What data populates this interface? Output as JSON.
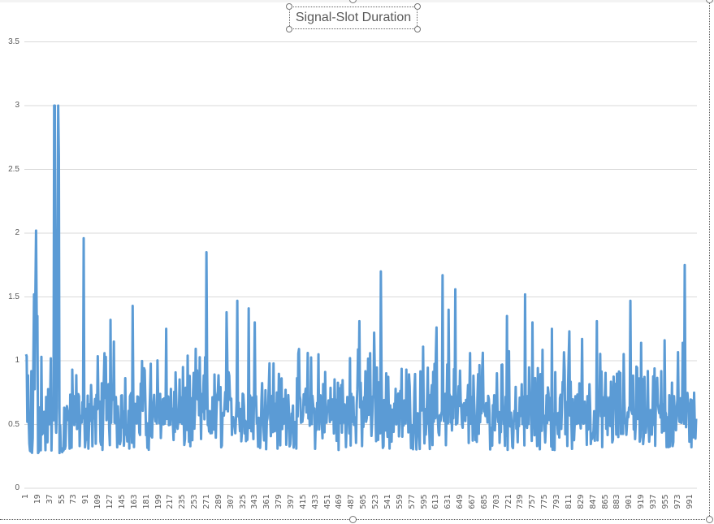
{
  "chart_data": {
    "type": "line",
    "title": "Signal-Slot Duration",
    "xlabel": "",
    "ylabel": "",
    "ylim": [
      0,
      3.5
    ],
    "y_ticks": [
      "0",
      "0.5",
      "1",
      "1.5",
      "2",
      "2.5",
      "3",
      "3.5"
    ],
    "x_tick_labels": [
      "1",
      "19",
      "37",
      "55",
      "73",
      "91",
      "109",
      "127",
      "145",
      "163",
      "181",
      "199",
      "217",
      "235",
      "253",
      "271",
      "289",
      "307",
      "325",
      "343",
      "361",
      "379",
      "397",
      "415",
      "433",
      "451",
      "469",
      "487",
      "505",
      "523",
      "541",
      "559",
      "577",
      "595",
      "613",
      "631",
      "649",
      "667",
      "685",
      "703",
      "721",
      "739",
      "757",
      "775",
      "793",
      "811",
      "829",
      "847",
      "865",
      "883",
      "901",
      "919",
      "937",
      "955",
      "973",
      "991"
    ],
    "grid": "horizontal major gridlines",
    "legend": "none",
    "series": [
      {
        "name": "Signal-Slot Duration",
        "color": "#5B9BD5",
        "n_points": 1000,
        "baseline_range": [
          0.3,
          0.9
        ],
        "typical_value": 0.55,
        "notable_peaks": [
          {
            "x": 1,
            "y": 1.05
          },
          {
            "x": 13,
            "y": 1.52
          },
          {
            "x": 16,
            "y": 2.02
          },
          {
            "x": 18,
            "y": 1.35
          },
          {
            "x": 24,
            "y": 1.03
          },
          {
            "x": 43,
            "y": 3.0
          },
          {
            "x": 48,
            "y": 1.98
          },
          {
            "x": 49,
            "y": 3.0
          },
          {
            "x": 70,
            "y": 0.93
          },
          {
            "x": 87,
            "y": 1.96
          },
          {
            "x": 127,
            "y": 1.32
          },
          {
            "x": 132,
            "y": 1.15
          },
          {
            "x": 160,
            "y": 1.43
          },
          {
            "x": 210,
            "y": 1.25
          },
          {
            "x": 242,
            "y": 1.04
          },
          {
            "x": 270,
            "y": 1.85
          },
          {
            "x": 300,
            "y": 1.38
          },
          {
            "x": 316,
            "y": 1.47
          },
          {
            "x": 333,
            "y": 1.41
          },
          {
            "x": 342,
            "y": 1.3
          },
          {
            "x": 437,
            "y": 1.05
          },
          {
            "x": 484,
            "y": 1.02
          },
          {
            "x": 498,
            "y": 1.31
          },
          {
            "x": 520,
            "y": 1.22
          },
          {
            "x": 530,
            "y": 1.7
          },
          {
            "x": 593,
            "y": 1.11
          },
          {
            "x": 613,
            "y": 1.26
          },
          {
            "x": 622,
            "y": 1.67
          },
          {
            "x": 631,
            "y": 1.4
          },
          {
            "x": 641,
            "y": 1.56
          },
          {
            "x": 663,
            "y": 1.06
          },
          {
            "x": 718,
            "y": 1.35
          },
          {
            "x": 745,
            "y": 1.52
          },
          {
            "x": 756,
            "y": 1.3
          },
          {
            "x": 785,
            "y": 1.25
          },
          {
            "x": 811,
            "y": 1.23
          },
          {
            "x": 830,
            "y": 1.17
          },
          {
            "x": 852,
            "y": 1.31
          },
          {
            "x": 902,
            "y": 1.47
          },
          {
            "x": 918,
            "y": 1.14
          },
          {
            "x": 953,
            "y": 1.16
          },
          {
            "x": 980,
            "y": 1.14
          },
          {
            "x": 983,
            "y": 1.75
          }
        ]
      }
    ]
  },
  "ui": {
    "title": "Signal-Slot Duration"
  }
}
